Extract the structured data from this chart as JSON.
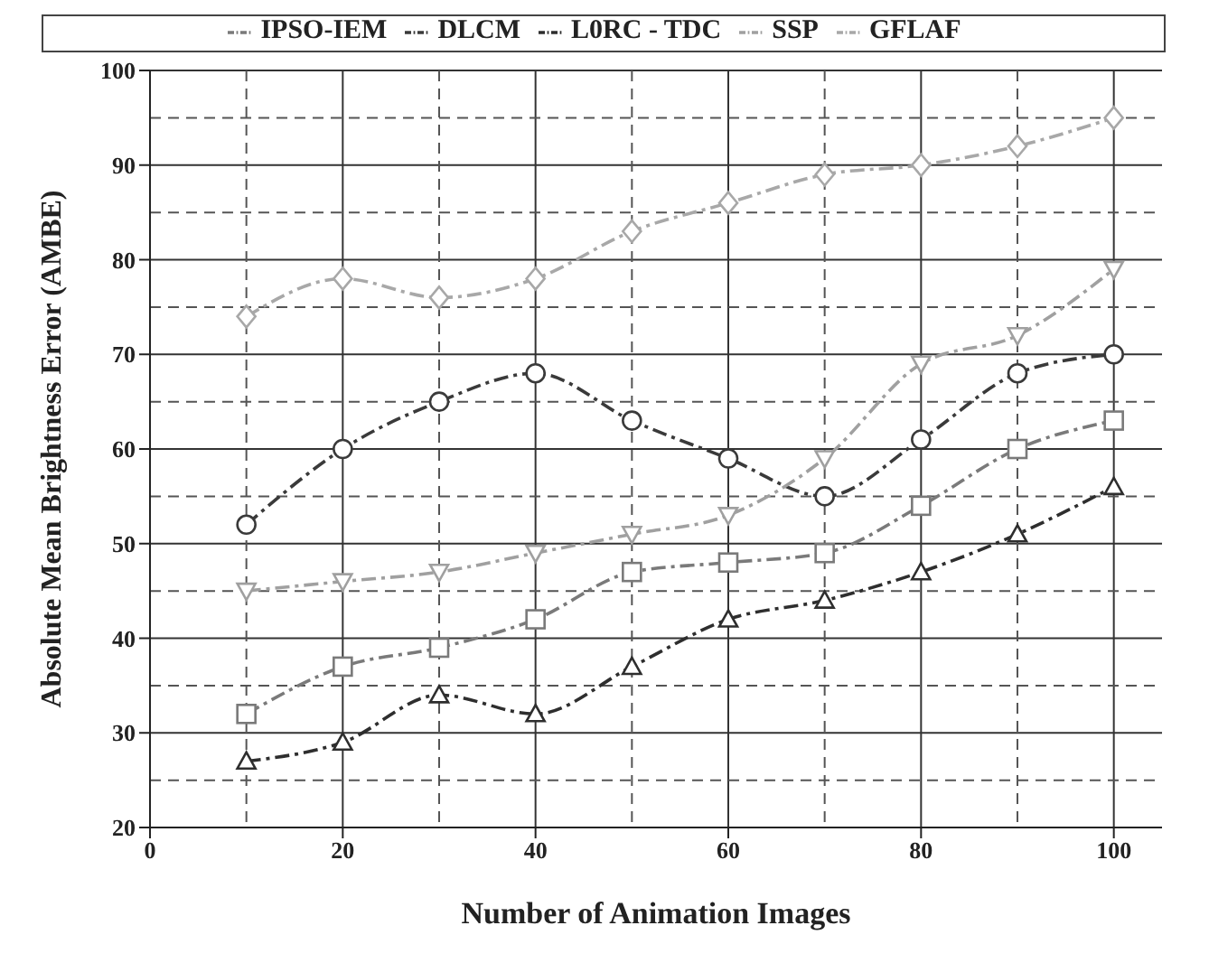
{
  "chart_data": {
    "type": "line",
    "xlabel": "Number of Animation Images",
    "ylabel": "Absolute Mean Brightness Error (AMBE)",
    "x": [
      10,
      20,
      30,
      40,
      50,
      60,
      70,
      80,
      90,
      100
    ],
    "xlim": [
      0,
      105
    ],
    "xticks": [
      0,
      20,
      40,
      60,
      80,
      100
    ],
    "ylim": [
      20,
      100
    ],
    "yticks": [
      20,
      30,
      40,
      50,
      60,
      70,
      80,
      90,
      100
    ],
    "grid": true,
    "legend": "top",
    "line_style": "dashed",
    "series": [
      {
        "name": "IPSO-IEM",
        "color": "#7a7a7a",
        "marker": "square",
        "values": [
          32,
          37,
          39,
          42,
          47,
          48,
          49,
          54,
          60,
          63
        ]
      },
      {
        "name": "DLCM",
        "color": "#3a3a3a",
        "marker": "circle",
        "values": [
          52,
          60,
          65,
          68,
          63,
          59,
          55,
          61,
          68,
          70
        ]
      },
      {
        "name": "L0RC - TDC",
        "color": "#2e2e2e",
        "marker": "triangle",
        "values": [
          27,
          29,
          34,
          32,
          37,
          42,
          44,
          47,
          51,
          56
        ]
      },
      {
        "name": "SSP",
        "color": "#a0a0a0",
        "marker": "triangle-down",
        "values": [
          45,
          46,
          47,
          49,
          51,
          53,
          59,
          69,
          72,
          79
        ]
      },
      {
        "name": "GFLAF",
        "color": "#a8a8a8",
        "marker": "diamond",
        "values": [
          74,
          78,
          76,
          78,
          83,
          86,
          89,
          90,
          92,
          95
        ]
      }
    ]
  }
}
